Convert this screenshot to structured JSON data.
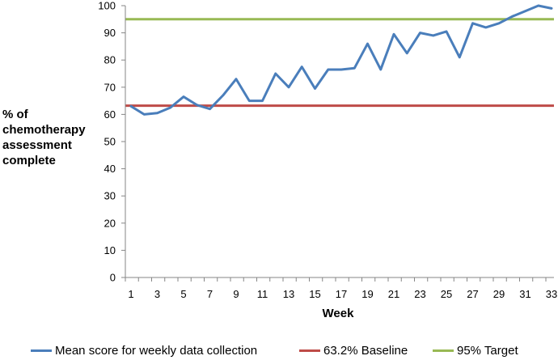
{
  "chart_data": {
    "type": "line",
    "title": "",
    "xlabel": "Week",
    "ylabel": "% of chemotherapy assessment complete",
    "ylim": [
      0,
      100
    ],
    "yticks": [
      0,
      10,
      20,
      30,
      40,
      50,
      60,
      70,
      80,
      90,
      100
    ],
    "x": [
      1,
      2,
      3,
      4,
      5,
      6,
      7,
      8,
      9,
      10,
      11,
      12,
      13,
      14,
      15,
      16,
      17,
      18,
      19,
      20,
      21,
      22,
      23,
      24,
      25,
      26,
      27,
      28,
      29,
      30,
      31,
      32,
      33
    ],
    "xtick_labels": [
      "1",
      "3",
      "5",
      "7",
      "9",
      "11",
      "13",
      "15",
      "17",
      "19",
      "21",
      "23",
      "25",
      "27",
      "29",
      "31",
      "33"
    ],
    "grid": false,
    "legend_position": "bottom",
    "series": [
      {
        "name": "Mean score for weekly data collection",
        "color": "#4a7ebb",
        "values": [
          63,
          60,
          60.5,
          62.5,
          66.5,
          63.5,
          62,
          67,
          73,
          65,
          65,
          75,
          70,
          77.5,
          69.5,
          76.5,
          76.5,
          77,
          86,
          76.5,
          89.5,
          82.5,
          90,
          89,
          90.5,
          81,
          93.5,
          92,
          93.5,
          96,
          98,
          100,
          99
        ]
      },
      {
        "name": "63.2% Baseline",
        "color": "#be4b48",
        "constant": 63.2
      },
      {
        "name": "95% Target",
        "color": "#98b954",
        "constant": 95
      }
    ]
  }
}
